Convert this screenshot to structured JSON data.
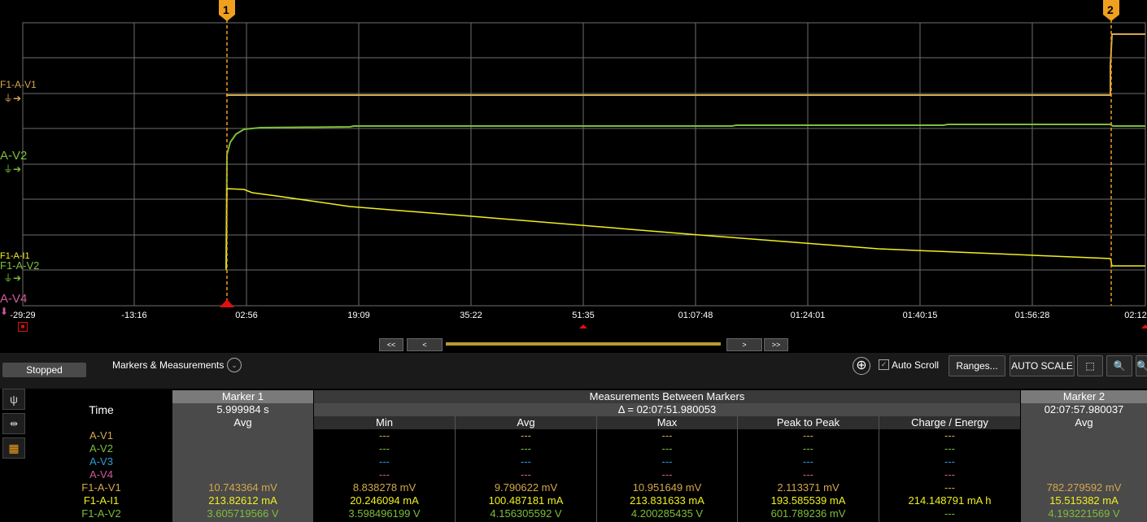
{
  "scope": {
    "x_ticks": [
      "-29:29",
      "-13:16",
      "02:56",
      "19:09",
      "35:22",
      "51:35",
      "01:07:48",
      "01:24:01",
      "01:40:15",
      "01:56:28",
      "02:12"
    ],
    "marker1_label": "1",
    "marker2_label": "2",
    "trace_labels": {
      "f1av1": "F1-A-V1",
      "av2": "A-V2",
      "f1ai1": "F1-A-I1",
      "f1av2": "F1-A-V2",
      "av4": "A-V4"
    },
    "colors": {
      "grid": "#6e6e6e",
      "marker": "#f0a020",
      "f1av1": "#d4a84c",
      "f1av2": "#7cbf3a",
      "f1ai1": "#f0f020",
      "av4": "#d05a9a"
    }
  },
  "navigation": {
    "first": "<<",
    "prev": "<",
    "next": ">",
    "last": ">>"
  },
  "toolbar": {
    "status": "Stopped",
    "markers_menu": "Markers & Measurements",
    "auto_scroll": "Auto Scroll",
    "ranges": "Ranges...",
    "auto_scale": "AUTO SCALE"
  },
  "measurements": {
    "time_label": "Time",
    "marker1": {
      "title": "Marker 1",
      "time": "5.999984 s",
      "stat": "Avg"
    },
    "between": {
      "title": "Measurements Between Markers",
      "delta": "Δ = 02:07:51.980053",
      "columns": [
        "Min",
        "Avg",
        "Max",
        "Peak to Peak",
        "Charge / Energy"
      ]
    },
    "marker2": {
      "title": "Marker 2",
      "time": "02:07:57.980037",
      "stat": "Avg"
    },
    "rows": [
      {
        "name": "A-V1",
        "m1": "",
        "min": "---",
        "avg": "---",
        "max": "---",
        "p2p": "---",
        "charge": "---",
        "m2": ""
      },
      {
        "name": "A-V2",
        "m1": "",
        "min": "---",
        "avg": "---",
        "max": "---",
        "p2p": "---",
        "charge": "---",
        "m2": ""
      },
      {
        "name": "A-V3",
        "m1": "",
        "min": "---",
        "avg": "---",
        "max": "---",
        "p2p": "---",
        "charge": "---",
        "m2": ""
      },
      {
        "name": "A-V4",
        "m1": "",
        "min": "---",
        "avg": "---",
        "max": "---",
        "p2p": "---",
        "charge": "---",
        "m2": ""
      },
      {
        "name": "F1-A-V1",
        "m1": "10.743364 mV",
        "min": "8.838278 mV",
        "avg": "9.790622 mV",
        "max": "10.951649 mV",
        "p2p": "2.113371 mV",
        "charge": "---",
        "m2": "782.279592 mV"
      },
      {
        "name": "F1-A-I1",
        "m1": "213.82612 mA",
        "min": "20.246094 mA",
        "avg": "100.487181 mA",
        "max": "213.831633 mA",
        "p2p": "193.585539 mA",
        "charge": "214.148791 mA h",
        "m2": "15.515382 mA"
      },
      {
        "name": "F1-A-V2",
        "m1": "3.605719566 V",
        "min": "3.598496199 V",
        "avg": "4.156305592 V",
        "max": "4.200285435 V",
        "p2p": "601.789236 mV",
        "charge": "---",
        "m2": "4.193221569 V"
      }
    ]
  }
}
